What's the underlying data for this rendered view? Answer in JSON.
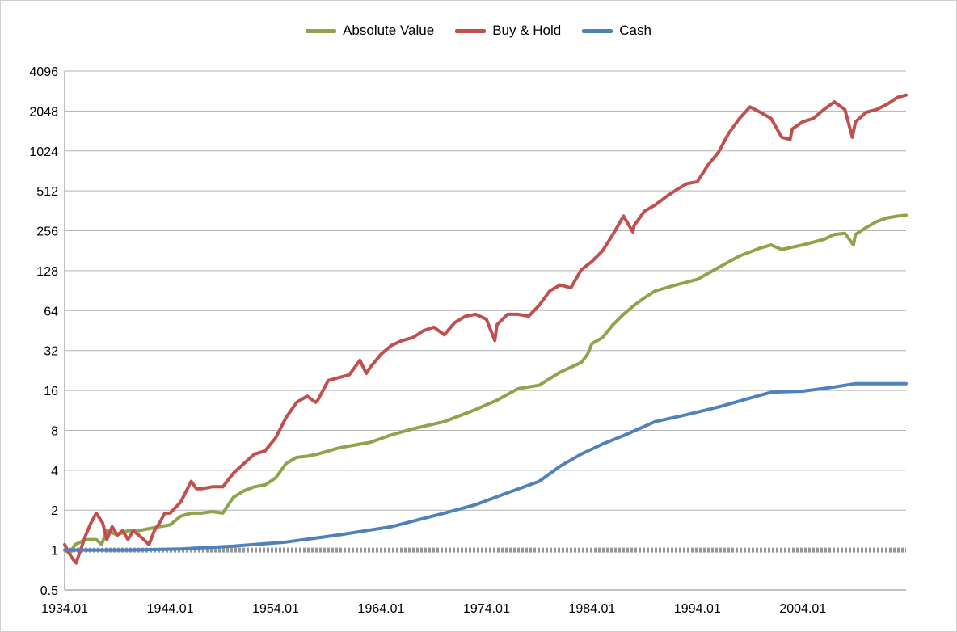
{
  "chart_data": {
    "type": "line",
    "title": "",
    "xlabel": "",
    "ylabel": "",
    "y_scale": "log2",
    "ylim": [
      0.5,
      4096
    ],
    "xlim": [
      1934.0,
      2013.8
    ],
    "grid": "horizontal",
    "legend_position": "top",
    "y_ticks": [
      "0.5",
      "1",
      "2",
      "4",
      "8",
      "16",
      "32",
      "64",
      "128",
      "256",
      "512",
      "1024",
      "2048",
      "4096"
    ],
    "x_ticks": [
      "1934.01",
      "1944.01",
      "1954.01",
      "1964.01",
      "1974.01",
      "1984.01",
      "1994.01",
      "2004.01"
    ],
    "series": [
      {
        "name": "Absolute Value",
        "color": "#8ea44a",
        "x": [
          1934,
          1934.5,
          1935,
          1936,
          1937,
          1937.5,
          1938,
          1939,
          1940,
          1941,
          1942,
          1943,
          1944,
          1945,
          1946,
          1947,
          1948,
          1949,
          1950,
          1951,
          1952,
          1953,
          1954,
          1955,
          1956,
          1957,
          1958,
          1960,
          1962,
          1963,
          1965,
          1967,
          1970,
          1973,
          1975,
          1977,
          1979,
          1981,
          1983,
          1983.6,
          1984,
          1985,
          1986,
          1987,
          1988,
          1989,
          1990,
          1992,
          1994,
          1996,
          1998,
          2000,
          2001,
          2002,
          2004,
          2006,
          2007,
          2008,
          2008.8,
          2009,
          2010,
          2011,
          2012,
          2013,
          2013.8
        ],
        "y": [
          1.0,
          0.95,
          1.1,
          1.2,
          1.2,
          1.1,
          1.4,
          1.3,
          1.4,
          1.4,
          1.45,
          1.5,
          1.55,
          1.8,
          1.9,
          1.9,
          1.95,
          1.9,
          2.5,
          2.8,
          3.0,
          3.1,
          3.5,
          4.5,
          5.0,
          5.1,
          5.3,
          5.9,
          6.3,
          6.5,
          7.4,
          8.2,
          9.3,
          11.5,
          13.5,
          16.5,
          17.5,
          22.0,
          26.0,
          30.0,
          36.0,
          40.0,
          50.0,
          60.0,
          70.0,
          80.0,
          90.0,
          100.0,
          110.0,
          135.0,
          165.0,
          190.0,
          200.0,
          185.0,
          200.0,
          220.0,
          240.0,
          245.0,
          200.0,
          240.0,
          270.0,
          300.0,
          320.0,
          330.0,
          335.0
        ]
      },
      {
        "name": "Buy & Hold",
        "color": "#c0504d",
        "x": [
          1934,
          1934.4,
          1934.8,
          1935.1,
          1935.5,
          1936,
          1936.5,
          1937,
          1937.6,
          1938,
          1938.5,
          1939,
          1939.5,
          1940,
          1940.5,
          1941,
          1941.5,
          1942,
          1942.5,
          1943,
          1943.5,
          1944,
          1945,
          1946,
          1946.5,
          1947,
          1948,
          1949,
          1950,
          1951,
          1952,
          1953,
          1954,
          1955,
          1956,
          1957,
          1957.8,
          1958,
          1959,
          1960,
          1961,
          1962,
          1962.6,
          1963,
          1964,
          1965,
          1966,
          1967,
          1968,
          1969,
          1970,
          1971,
          1972,
          1973,
          1974,
          1974.8,
          1975,
          1976,
          1977,
          1978,
          1979,
          1980,
          1981,
          1982,
          1983,
          1984,
          1985,
          1986,
          1987,
          1987.9,
          1988,
          1989,
          1990,
          1991,
          1992,
          1993,
          1994,
          1995,
          1996,
          1997,
          1998,
          1999,
          2000,
          2001,
          2002,
          2002.8,
          2003,
          2004,
          2005,
          2006,
          2007,
          2008,
          2008.7,
          2009,
          2010,
          2011,
          2012,
          2013,
          2013.8
        ],
        "y": [
          1.1,
          0.95,
          0.85,
          0.8,
          1.0,
          1.3,
          1.6,
          1.9,
          1.6,
          1.2,
          1.5,
          1.3,
          1.4,
          1.2,
          1.4,
          1.3,
          1.2,
          1.1,
          1.4,
          1.6,
          1.9,
          1.9,
          2.3,
          3.3,
          2.9,
          2.9,
          3.0,
          3.0,
          3.8,
          4.5,
          5.3,
          5.6,
          7.0,
          10.0,
          13.0,
          14.5,
          13.0,
          13.5,
          19.0,
          20.0,
          21.0,
          27.0,
          21.5,
          24.0,
          30.0,
          35.0,
          38.0,
          40.0,
          45.0,
          48.0,
          42.0,
          52.0,
          58.0,
          60.0,
          55.0,
          38.0,
          50.0,
          60.0,
          60.0,
          58.0,
          70.0,
          90.0,
          100.0,
          95.0,
          130.0,
          150.0,
          180.0,
          240.0,
          330.0,
          250.0,
          280.0,
          360.0,
          400.0,
          460.0,
          520.0,
          580.0,
          600.0,
          800.0,
          1000.0,
          1400.0,
          1800.0,
          2200.0,
          2000.0,
          1800.0,
          1300.0,
          1250.0,
          1500.0,
          1700.0,
          1800.0,
          2100.0,
          2400.0,
          2100.0,
          1300.0,
          1700.0,
          2000.0,
          2100.0,
          2300.0,
          2600.0,
          2700.0
        ]
      },
      {
        "name": "Cash",
        "color": "#4f81bd",
        "x": [
          1934,
          1940,
          1945,
          1950,
          1955,
          1960,
          1965,
          1970,
          1973,
          1976,
          1979,
          1981,
          1983,
          1985,
          1987,
          1990,
          1993,
          1996,
          1999,
          2001,
          2004,
          2007,
          2009,
          2013.8
        ],
        "y": [
          1.0,
          1.0,
          1.02,
          1.07,
          1.15,
          1.3,
          1.5,
          1.9,
          2.2,
          2.7,
          3.3,
          4.3,
          5.3,
          6.3,
          7.3,
          9.3,
          10.5,
          12.0,
          14.0,
          15.5,
          15.8,
          17.0,
          18.0,
          18.0
        ]
      },
      {
        "name": "",
        "color": "#969696",
        "dashed": true,
        "x": [
          1934,
          2013.8
        ],
        "y": [
          1.0,
          1.0
        ]
      }
    ]
  }
}
